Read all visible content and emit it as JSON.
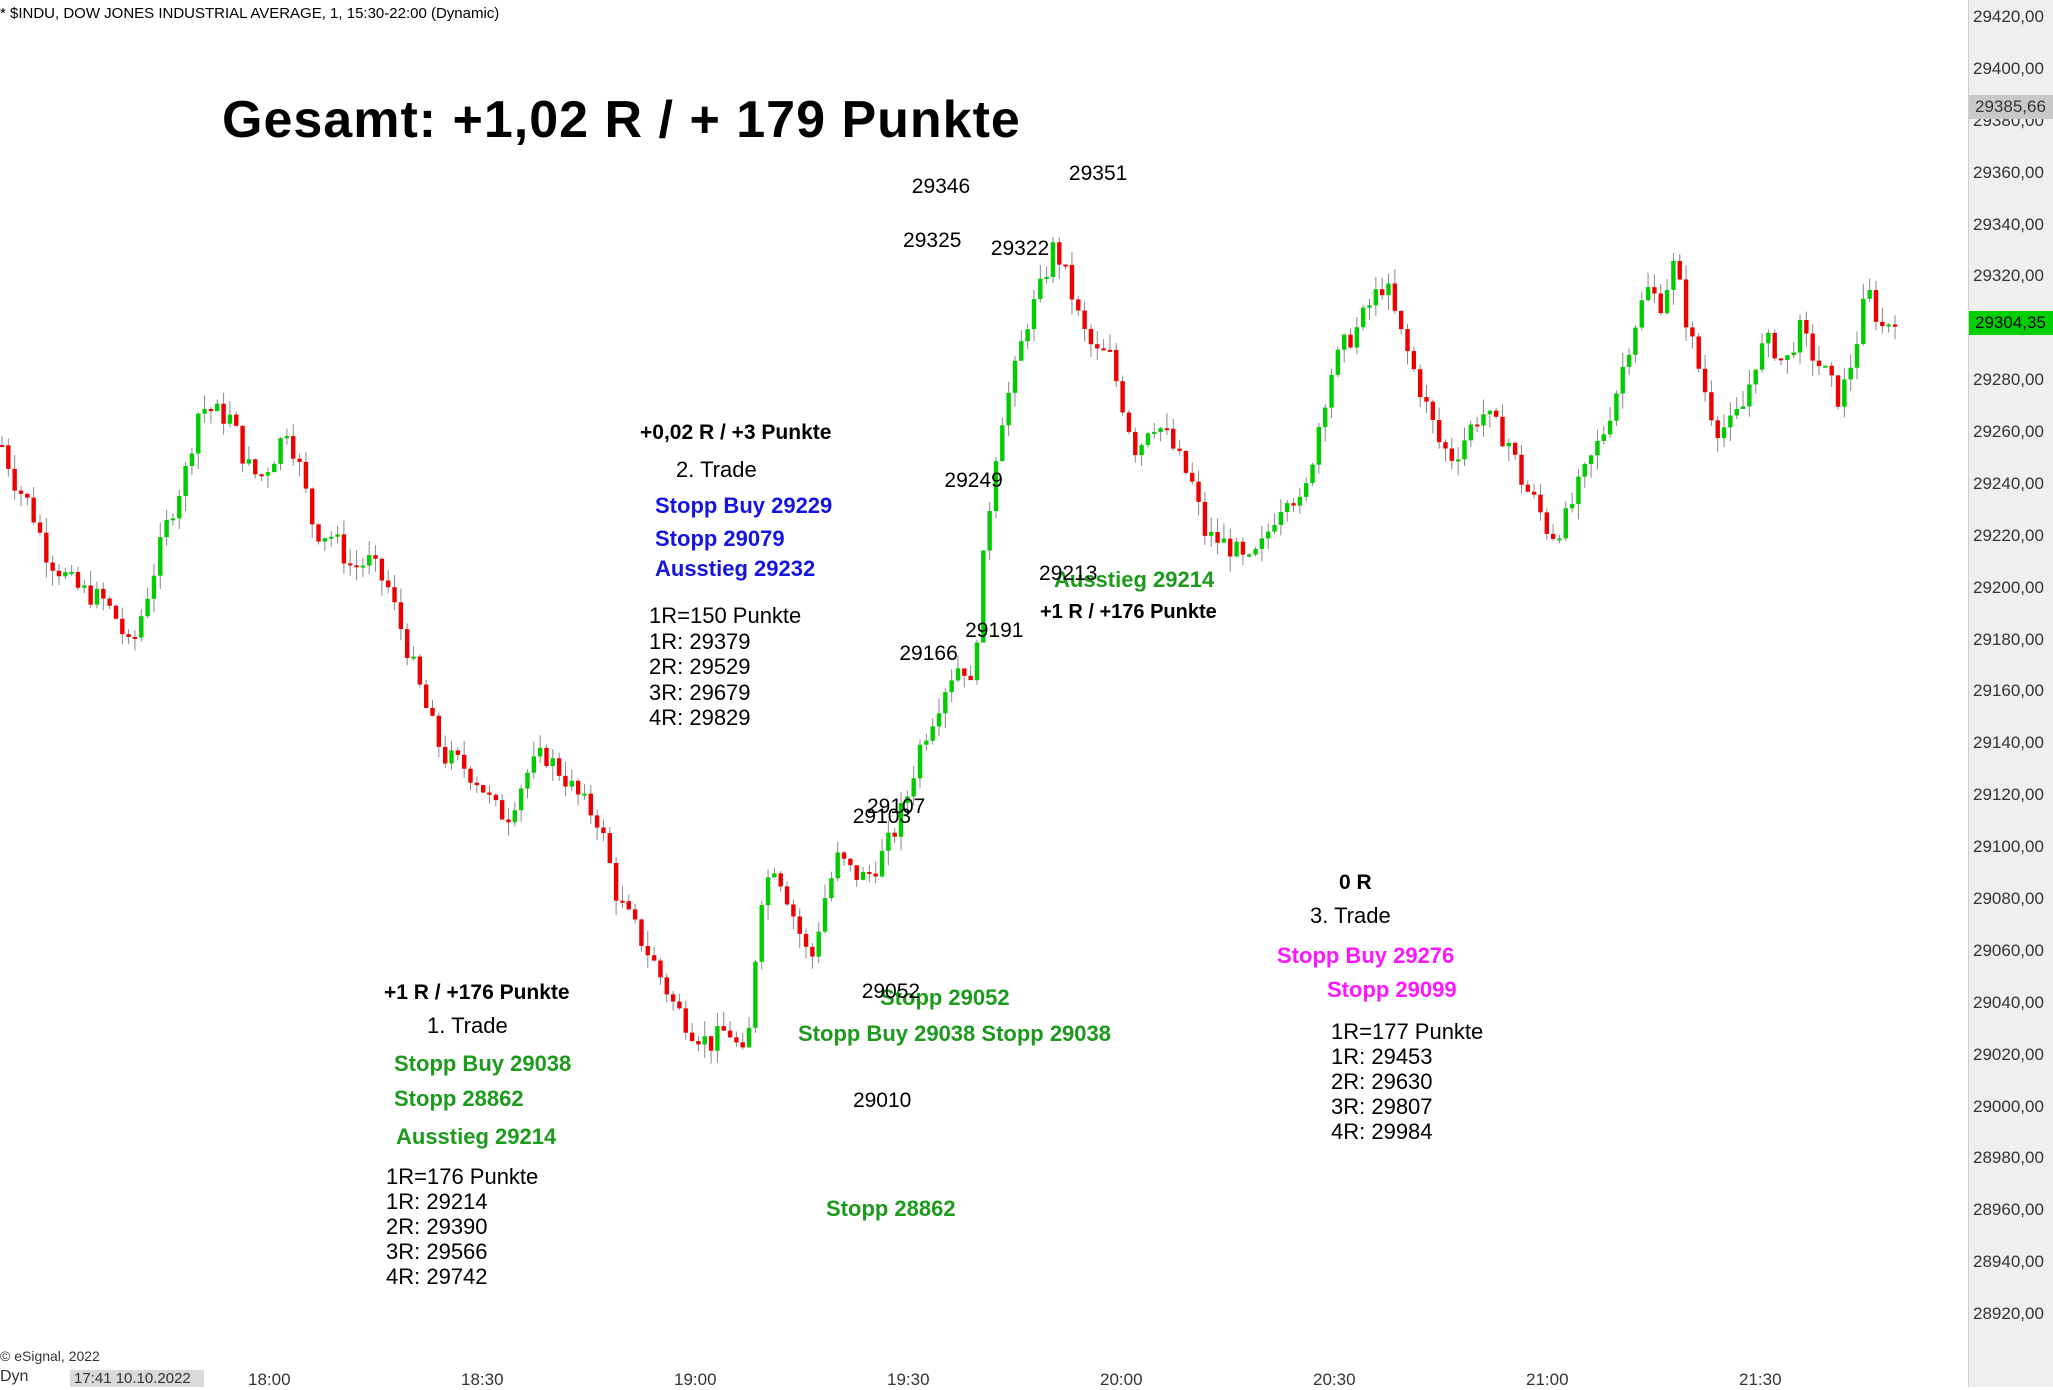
{
  "header": {
    "symbol_line": "* $INDU, DOW JONES INDUSTRIAL AVERAGE, 1, 15:30-22:00 (Dynamic)"
  },
  "title": "Gesamt: +1,02 R / + 179 Punkte",
  "footer": {
    "copyright": "© eSignal, 2022",
    "date_box": "17:41 10.10.2022",
    "dyn_label": "Dyn"
  },
  "colors": {
    "up": "#00cc00",
    "down": "#ee0000",
    "trade_green": "#1c9a1c",
    "trade_blue": "#1414e0",
    "trade_magenta": "#ff16ff"
  },
  "trades": [
    {
      "result": "+1 R / +176 Punkte",
      "name": "1. Trade",
      "color": "green",
      "entry": "Stopp Buy 29038",
      "stop": "Stopp 28862",
      "exit": "Ausstieg 29214",
      "risk": [
        "1R=176 Punkte",
        "1R: 29214",
        "2R: 29390",
        "3R: 29566",
        "4R: 29742"
      ]
    },
    {
      "result": "+0,02 R / +3 Punkte",
      "name": "2. Trade",
      "color": "blue",
      "entry": "Stopp Buy 29229",
      "stop": "Stopp 29079",
      "exit": "Ausstieg 29232",
      "risk": [
        "1R=150 Punkte",
        "1R: 29379",
        "2R: 29529",
        "3R: 29679",
        "4R: 29829"
      ]
    },
    {
      "result": "0 R",
      "name": "3. Trade",
      "color": "magenta",
      "entry": "Stopp Buy 29276",
      "stop": "Stopp 29099",
      "risk": [
        "1R=177 Punkte",
        "1R: 29453",
        "2R: 29630",
        "3R: 29807",
        "4R: 29984"
      ]
    }
  ],
  "chart_notes": {
    "stopp_29052": "Stopp 29052",
    "stopp_buy_stopp": "Stopp Buy 29038 Stopp 29038",
    "stopp_28862": "Stopp 28862",
    "ausstieg_29214": "Ausstieg 29214",
    "r_176": "+1 R / +176 Punkte"
  },
  "chart_data": {
    "type": "candlestick",
    "title": "",
    "xlabel": "",
    "ylabel": "",
    "ylim": [
      28910,
      29420
    ],
    "x_ticks": [
      "18:00",
      "18:30",
      "19:00",
      "19:30",
      "20:00",
      "20:30",
      "21:00",
      "21:30"
    ],
    "y_ticks": [
      "28920,00",
      "28940,00",
      "28960,00",
      "28980,00",
      "29000,00",
      "29020,00",
      "29040,00",
      "29060,00",
      "29080,00",
      "29100,00",
      "29120,00",
      "29140,00",
      "29160,00",
      "29180,00",
      "29200,00",
      "29220,00",
      "29240,00",
      "29260,00",
      "29280,00",
      "29300,00",
      "29320,00",
      "29340,00",
      "29360,00",
      "29380,00",
      "29400,00",
      "29420,00"
    ],
    "last_price": "29304,35",
    "marker_price": "29385,66",
    "pivot_labels": [
      {
        "text": "29010",
        "t": 19.13,
        "v": 29010,
        "pos": "below"
      },
      {
        "text": "29103",
        "t": 19.125,
        "v": 29103,
        "pos": "above"
      },
      {
        "text": "29052",
        "t": 19.32,
        "v": 29052,
        "pos": "below"
      },
      {
        "text": "29107",
        "t": 19.435,
        "v": 29107,
        "pos": "above"
      },
      {
        "text": "29166",
        "t": 20.14,
        "v": 29166,
        "pos": "above"
      },
      {
        "text": "29346",
        "t": 20.41,
        "v": 29346,
        "pos": "above"
      },
      {
        "text": "29325",
        "t": 20.22,
        "v": 29325,
        "pos": "above"
      },
      {
        "text": "29249",
        "t": 21.12,
        "v": 29249,
        "pos": "below"
      },
      {
        "text": "29191",
        "t": 21.57,
        "v": 29191,
        "pos": "below"
      },
      {
        "text": "29322",
        "t": 22.13,
        "v": 29322,
        "pos": "above"
      },
      {
        "text": "29213",
        "t": 23.18,
        "v": 29213,
        "pos": "below"
      },
      {
        "text": "29351",
        "t": 23.83,
        "v": 29351,
        "pos": "above"
      }
    ],
    "series_path": [
      [
        0,
        29255
      ],
      [
        0.3,
        29240
      ],
      [
        0.6,
        29232
      ],
      [
        1.0,
        29212
      ],
      [
        1.6,
        29200
      ],
      [
        2.2,
        29195
      ],
      [
        2.5,
        29188
      ],
      [
        2.8,
        29175
      ],
      [
        3.2,
        29200
      ],
      [
        3.6,
        29225
      ],
      [
        4.0,
        29245
      ],
      [
        4.3,
        29270
      ],
      [
        4.6,
        29268
      ],
      [
        5.0,
        29265
      ],
      [
        5.3,
        29248
      ],
      [
        5.6,
        29242
      ],
      [
        5.9,
        29250
      ],
      [
        6.2,
        29262
      ],
      [
        6.5,
        29245
      ],
      [
        6.8,
        29222
      ],
      [
        7.2,
        29220
      ],
      [
        7.6,
        29208
      ],
      [
        8.0,
        29210
      ],
      [
        8.4,
        29200
      ],
      [
        8.8,
        29178
      ],
      [
        9.2,
        29155
      ],
      [
        9.6,
        29135
      ],
      [
        10.0,
        29132
      ],
      [
        10.4,
        29125
      ],
      [
        10.7,
        29115
      ],
      [
        11.0,
        29112
      ],
      [
        11.4,
        29128
      ],
      [
        11.8,
        29136
      ],
      [
        12.2,
        29128
      ],
      [
        12.6,
        29118
      ],
      [
        13.0,
        29110
      ],
      [
        13.4,
        29080
      ],
      [
        13.8,
        29068
      ],
      [
        14.2,
        29055
      ],
      [
        14.6,
        29040
      ],
      [
        15.0,
        29030
      ],
      [
        15.4,
        29024
      ],
      [
        15.8,
        29030
      ],
      [
        16.2,
        29016
      ],
      [
        16.5,
        29080
      ],
      [
        16.8,
        29094
      ],
      [
        17.0,
        29086
      ],
      [
        17.3,
        29070
      ],
      [
        17.6,
        29055
      ],
      [
        17.9,
        29080
      ],
      [
        18.2,
        29096
      ],
      [
        18.5,
        29090
      ],
      [
        18.8,
        29088
      ],
      [
        19.1,
        29095
      ],
      [
        19.4,
        29105
      ],
      [
        19.7,
        29120
      ],
      [
        20.0,
        29140
      ],
      [
        20.3,
        29152
      ],
      [
        20.6,
        29165
      ],
      [
        20.9,
        29172
      ],
      [
        21.1,
        29160
      ],
      [
        21.4,
        29218
      ],
      [
        21.7,
        29262
      ],
      [
        22.0,
        29280
      ],
      [
        22.3,
        29302
      ],
      [
        22.6,
        29315
      ],
      [
        22.9,
        29332
      ],
      [
        23.2,
        29318
      ],
      [
        23.5,
        29300
      ],
      [
        23.8,
        29290
      ],
      [
        24.1,
        29290
      ],
      [
        24.4,
        29270
      ],
      [
        24.7,
        29252
      ],
      [
        25.0,
        29265
      ],
      [
        25.3,
        29260
      ],
      [
        25.6,
        29250
      ],
      [
        25.9,
        29240
      ],
      [
        26.2,
        29220
      ],
      [
        26.5,
        29218
      ],
      [
        26.8,
        29215
      ],
      [
        27.1,
        29208
      ],
      [
        27.4,
        29215
      ],
      [
        27.7,
        29228
      ],
      [
        28.0,
        29238
      ],
      [
        28.3,
        29230
      ],
      [
        28.6,
        29258
      ],
      [
        28.9,
        29282
      ],
      [
        29.2,
        29293
      ],
      [
        29.5,
        29300
      ],
      [
        29.8,
        29310
      ],
      [
        30.1,
        29318
      ],
      [
        30.4,
        29300
      ],
      [
        30.7,
        29285
      ],
      [
        31.0,
        29270
      ],
      [
        31.3,
        29255
      ],
      [
        31.6,
        29250
      ],
      [
        31.9,
        29260
      ],
      [
        32.2,
        29268
      ],
      [
        32.5,
        29262
      ],
      [
        32.8,
        29256
      ],
      [
        33.1,
        29240
      ],
      [
        33.4,
        29232
      ],
      [
        33.7,
        29220
      ],
      [
        34.0,
        29225
      ],
      [
        34.3,
        29238
      ],
      [
        34.6,
        29250
      ],
      [
        34.9,
        29262
      ],
      [
        35.2,
        29280
      ],
      [
        35.5,
        29300
      ],
      [
        35.8,
        29315
      ],
      [
        36.1,
        29310
      ],
      [
        36.4,
        29325
      ],
      [
        36.7,
        29300
      ],
      [
        37.0,
        29280
      ],
      [
        37.3,
        29262
      ],
      [
        37.6,
        29262
      ],
      [
        37.9,
        29270
      ],
      [
        38.2,
        29290
      ],
      [
        38.5,
        29295
      ],
      [
        38.8,
        29285
      ],
      [
        39.1,
        29300
      ],
      [
        39.4,
        29290
      ],
      [
        39.7,
        29282
      ],
      [
        40.0,
        29272
      ],
      [
        40.3,
        29290
      ],
      [
        40.6,
        29315
      ],
      [
        40.9,
        29300
      ],
      [
        41.2,
        29305
      ]
    ]
  }
}
